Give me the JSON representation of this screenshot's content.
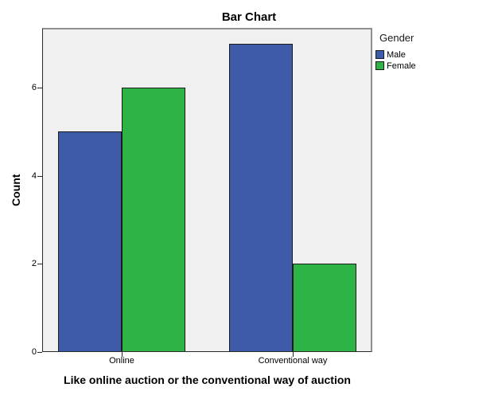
{
  "chart_data": {
    "type": "bar",
    "title": "Bar Chart",
    "categories": [
      "Online",
      "Conventional way"
    ],
    "series": [
      {
        "name": "Male",
        "color": "#3E5BA9",
        "values": [
          5,
          7
        ]
      },
      {
        "name": "Female",
        "color": "#2EB446",
        "values": [
          6,
          2
        ]
      }
    ],
    "xlabel": "Like online auction or the conventional way of auction",
    "ylabel": "Count",
    "ylim": [
      0,
      7.35
    ],
    "yticks": [
      0,
      2,
      4,
      6
    ],
    "legend_title": "Gender",
    "legend_position": "outside-top-right",
    "grid": false,
    "plot_bg": "#F0F0F0",
    "bar_border": "#1A1A1A",
    "axis_color": "#262626"
  }
}
